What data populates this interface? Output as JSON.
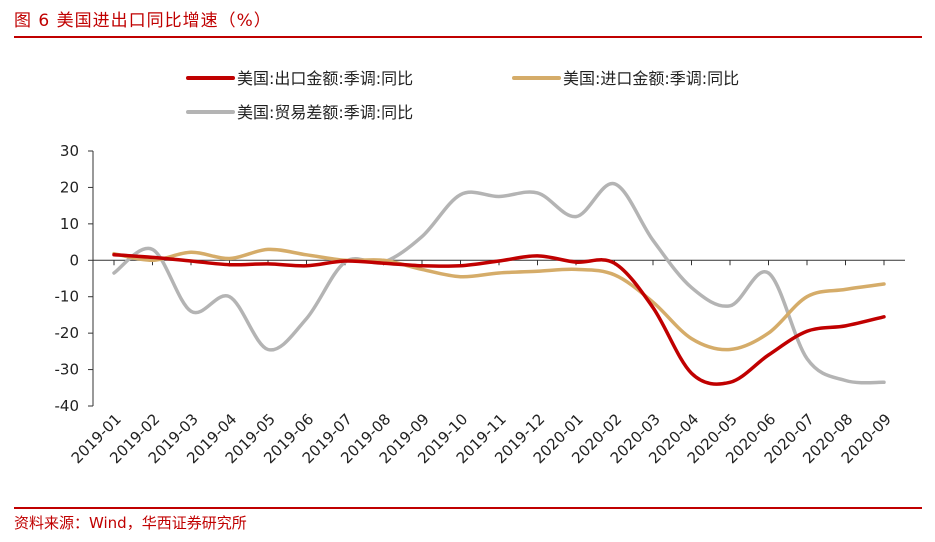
{
  "title": "图 6   美国进出口同比增速（%）",
  "source": "资料来源：Wind，华西证券研究所",
  "colors": {
    "accent": "#c00000",
    "export": "#c00000",
    "import": "#d5ac69",
    "balance": "#b4b4b4"
  },
  "chart_data": {
    "type": "line",
    "x": [
      "2019-01",
      "2019-02",
      "2019-03",
      "2019-04",
      "2019-05",
      "2019-06",
      "2019-07",
      "2019-08",
      "2019-09",
      "2019-10",
      "2019-11",
      "2019-12",
      "2020-01",
      "2020-02",
      "2020-03",
      "2020-04",
      "2020-05",
      "2020-06",
      "2020-07",
      "2020-08",
      "2020-09"
    ],
    "ylim": [
      -40,
      30
    ],
    "yticks": [
      30,
      20,
      10,
      0,
      -10,
      -20,
      -30,
      -40
    ],
    "series": [
      {
        "name": "美国:出口金额:季调:同比",
        "color": "#c00000",
        "values": [
          1.5,
          0.8,
          -0.2,
          -1.2,
          -1.0,
          -1.5,
          -0.2,
          -0.8,
          -1.5,
          -1.5,
          -0.2,
          1.2,
          -0.5,
          -0.8,
          -13,
          -31,
          -33.5,
          -26,
          -19.5,
          -18,
          -15.5
        ]
      },
      {
        "name": "美国:进口金额:季调:同比",
        "color": "#d5ac69",
        "values": [
          1.8,
          0.0,
          2.2,
          0.5,
          3.0,
          1.5,
          0.0,
          0.0,
          -2.5,
          -4.5,
          -3.5,
          -3.0,
          -2.5,
          -4.0,
          -11.5,
          -21.5,
          -24.5,
          -20,
          -10,
          -8,
          -6.5
        ]
      },
      {
        "name": "美国:贸易差额:季调:同比",
        "color": "#b4b4b4",
        "values": [
          -3.5,
          3.0,
          -14,
          -10,
          -24.5,
          -16,
          -0.5,
          -0.5,
          6.5,
          18,
          17.5,
          18.5,
          12,
          21,
          5.5,
          -7.5,
          -12.5,
          -3.5,
          -27,
          -33,
          -33.5
        ]
      }
    ],
    "legend": [
      "美国:出口金额:季调:同比",
      "美国:进口金额:季调:同比",
      "美国:贸易差额:季调:同比"
    ]
  }
}
